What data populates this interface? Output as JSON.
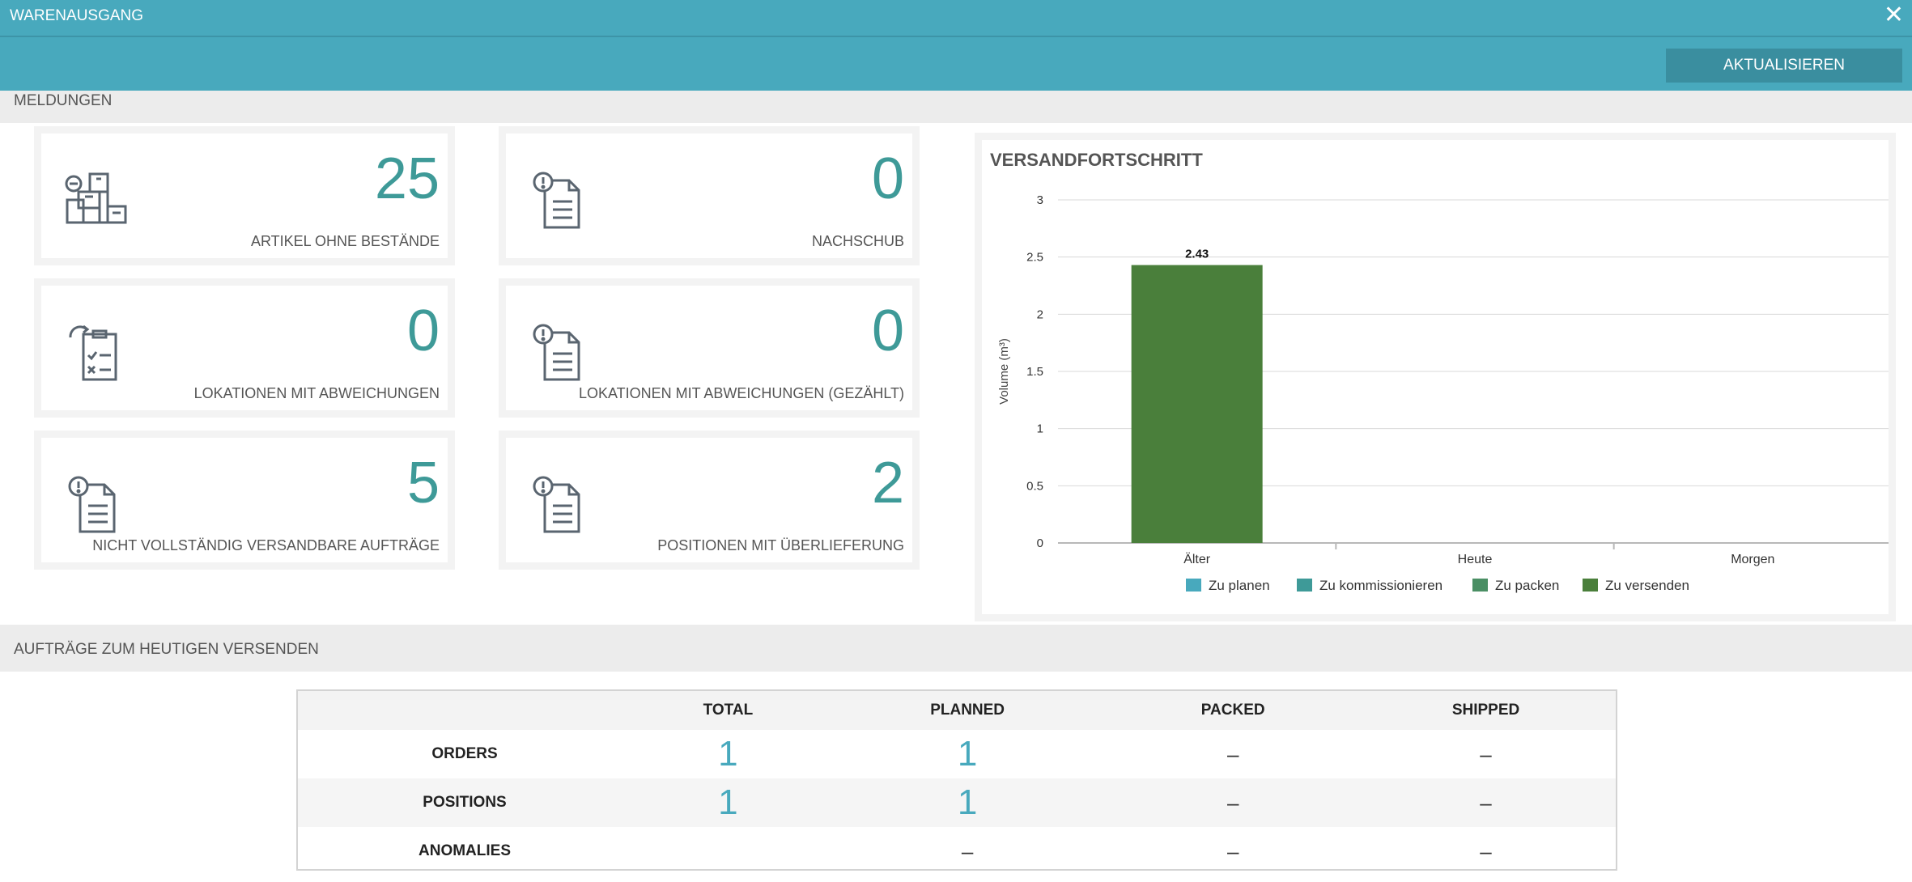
{
  "window": {
    "title": "WARENAUSGANG",
    "close": "✕"
  },
  "toolbar": {
    "refresh_label": "AKTUALISIEREN"
  },
  "sections": {
    "messages": "MELDUNGEN",
    "orders_today": "AUFTRÄGE ZUM HEUTIGEN VERSENDEN"
  },
  "cards": [
    {
      "value": "25",
      "label": "ARTIKEL OHNE BESTÄNDE",
      "icon": "boxes-icon"
    },
    {
      "value": "0",
      "label": "NACHSCHUB",
      "icon": "alert-document-icon"
    },
    {
      "value": "0",
      "label": "LOKATIONEN MIT ABWEICHUNGEN",
      "icon": "checklist-refresh-icon"
    },
    {
      "value": "0",
      "label": "LOKATIONEN MIT ABWEICHUNGEN (GEZÄHLT)",
      "icon": "alert-document-icon"
    },
    {
      "value": "5",
      "label": "NICHT VOLLSTÄNDIG VERSANDBARE AUFTRÄGE",
      "icon": "alert-document-icon"
    },
    {
      "value": "2",
      "label": "POSITIONEN MIT ÜBERLIEFERUNG",
      "icon": "alert-document-icon"
    }
  ],
  "colors": {
    "accent": "#48a9bd",
    "accent_dark": "#3a8e9f",
    "value_teal": "#3e9a98",
    "bar_green": "#4a7f3b"
  },
  "chart_data": {
    "type": "bar",
    "title": "VERSANDFORTSCHRITT",
    "ylabel": "Volume (m³)",
    "xlabel": "",
    "categories": [
      "Älter",
      "Heute",
      "Morgen"
    ],
    "ylim": [
      0,
      3
    ],
    "yticks": [
      "0",
      "0.5",
      "1",
      "1.5",
      "2",
      "2.5",
      "3"
    ],
    "stacked": true,
    "legend_position": "bottom",
    "grid": true,
    "series": [
      {
        "name": "Zu planen",
        "color": "#48a9bd",
        "values": [
          0,
          0,
          0
        ]
      },
      {
        "name": "Zu kommissionieren",
        "color": "#3e9a98",
        "values": [
          0,
          0,
          0
        ]
      },
      {
        "name": "Zu packen",
        "color": "#4a8f64",
        "values": [
          0,
          0,
          0
        ]
      },
      {
        "name": "Zu versenden",
        "color": "#4a7f3b",
        "values": [
          2.43,
          0,
          0
        ]
      }
    ],
    "data_labels": [
      "2.43",
      "",
      ""
    ]
  },
  "table": {
    "headers": [
      "",
      "TOTAL",
      "PLANNED",
      "PACKED",
      "SHIPPED"
    ],
    "rows": [
      {
        "label": "ORDERS",
        "cells": [
          "1",
          "1",
          "–",
          "–"
        ]
      },
      {
        "label": "POSITIONS",
        "cells": [
          "1",
          "1",
          "–",
          "–"
        ]
      },
      {
        "label": "ANOMALIES",
        "cells": [
          "",
          "–",
          "–",
          "–"
        ]
      }
    ]
  }
}
